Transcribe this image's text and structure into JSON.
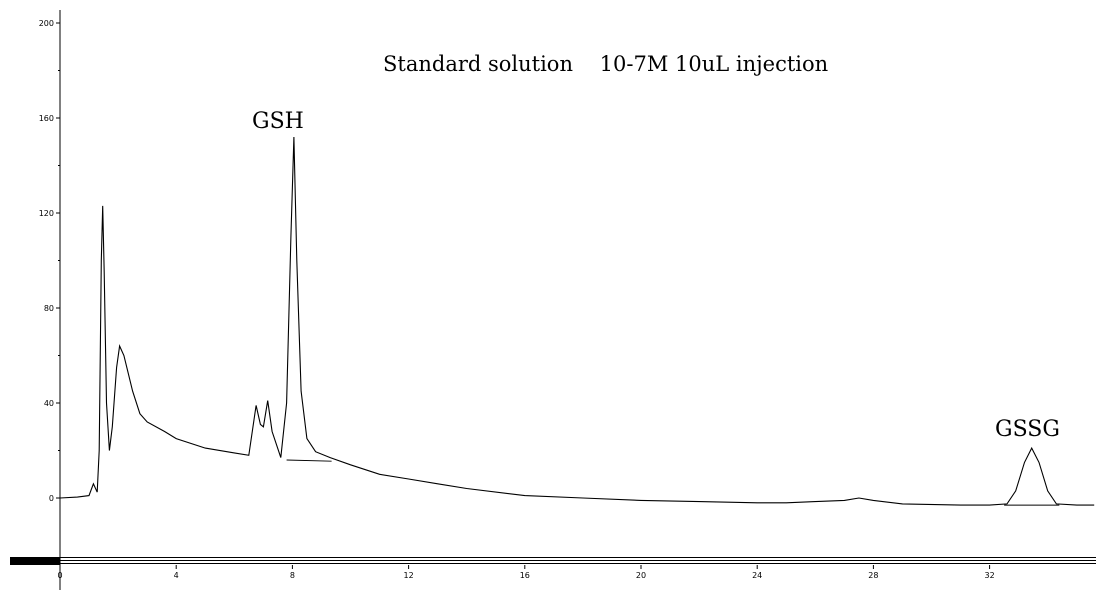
{
  "chart_data": {
    "type": "line",
    "title": "Standard solution    10-7M 10uL injection",
    "xlabel": "",
    "ylabel": "",
    "xlim": [
      0,
      35.6
    ],
    "ylim": [
      -10,
      205
    ],
    "x_ticks": [
      0,
      4,
      8,
      12,
      16,
      20,
      24,
      28,
      32
    ],
    "y_ticks": [
      0,
      40,
      80,
      120,
      160,
      200
    ],
    "x_tick_labels": [
      "0",
      "4",
      "8",
      "12",
      "16",
      "20",
      "24",
      "28",
      "32"
    ],
    "y_tick_labels": [
      "0",
      "40",
      "80",
      "120",
      "160",
      "200"
    ],
    "grid": false,
    "annotations": [
      {
        "text": "GSH",
        "x": 8.0,
        "y": 155
      },
      {
        "text": "GSSG",
        "x": 33.4,
        "y": 25
      }
    ],
    "series": [
      {
        "values": [
          [
            0.0,
            0.0
          ],
          [
            0.6,
            0.4
          ],
          [
            1.0,
            1.0
          ],
          [
            1.15,
            6.0
          ],
          [
            1.28,
            2.5
          ],
          [
            1.35,
            20.0
          ],
          [
            1.42,
            100.0
          ],
          [
            1.47,
            123.0
          ],
          [
            1.52,
            95.0
          ],
          [
            1.6,
            40.0
          ],
          [
            1.7,
            20.0
          ],
          [
            1.8,
            30.0
          ],
          [
            1.95,
            55.0
          ],
          [
            2.05,
            64.0
          ],
          [
            2.2,
            60.0
          ],
          [
            2.5,
            45.0
          ],
          [
            2.75,
            35.5
          ],
          [
            3.0,
            32.0
          ],
          [
            3.6,
            28.0
          ],
          [
            4.0,
            25.0
          ],
          [
            5.0,
            21.0
          ],
          [
            6.0,
            19.0
          ],
          [
            6.5,
            18.0
          ],
          [
            6.75,
            39.0
          ],
          [
            6.9,
            31.0
          ],
          [
            7.0,
            30.0
          ],
          [
            7.15,
            41.0
          ],
          [
            7.3,
            28.0
          ],
          [
            7.6,
            17.0
          ],
          [
            7.8,
            40.0
          ],
          [
            7.95,
            110.0
          ],
          [
            8.05,
            152.0
          ],
          [
            8.15,
            100.0
          ],
          [
            8.3,
            45.0
          ],
          [
            8.5,
            25.0
          ],
          [
            8.8,
            19.5
          ],
          [
            9.3,
            17.0
          ],
          [
            10.0,
            14.0
          ],
          [
            11.0,
            10.0
          ],
          [
            12.0,
            8.0
          ],
          [
            13.0,
            6.0
          ],
          [
            14.0,
            4.0
          ],
          [
            16.0,
            1.0
          ],
          [
            18.0,
            0.0
          ],
          [
            20.0,
            -1.0
          ],
          [
            22.0,
            -1.5
          ],
          [
            24.0,
            -2.0
          ],
          [
            25.0,
            -2.0
          ],
          [
            26.0,
            -1.5
          ],
          [
            27.0,
            -1.0
          ],
          [
            27.5,
            0.0
          ],
          [
            28.0,
            -1.0
          ],
          [
            29.0,
            -2.5
          ],
          [
            31.0,
            -3.0
          ],
          [
            32.0,
            -3.0
          ],
          [
            32.6,
            -2.5
          ],
          [
            32.9,
            3.0
          ],
          [
            33.2,
            15.0
          ],
          [
            33.45,
            21.0
          ],
          [
            33.7,
            15.0
          ],
          [
            34.0,
            3.0
          ],
          [
            34.3,
            -2.5
          ],
          [
            35.0,
            -3.0
          ],
          [
            35.6,
            -3.0
          ]
        ]
      }
    ],
    "baselines": [
      {
        "x": [
          7.8,
          9.35
        ],
        "y": [
          16.0,
          15.5
        ]
      },
      {
        "x": [
          32.5,
          34.4
        ],
        "y": [
          -3.0,
          -3.0
        ]
      }
    ]
  }
}
